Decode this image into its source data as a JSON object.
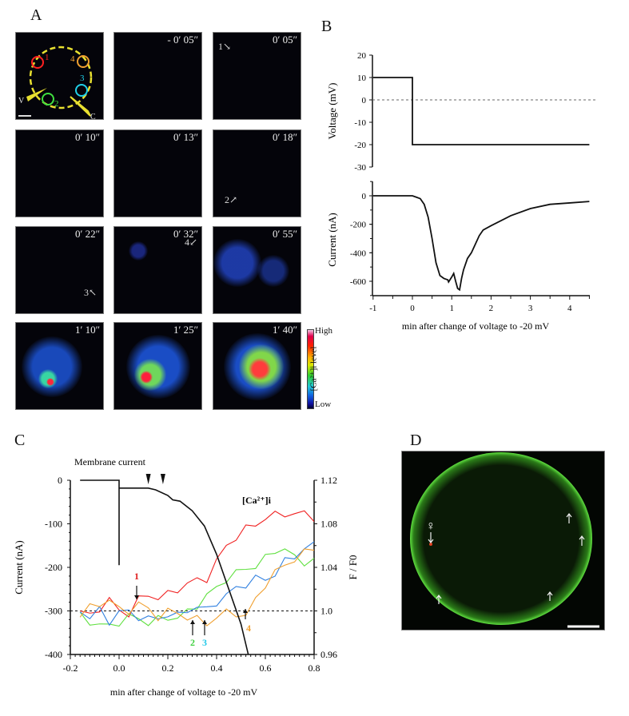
{
  "panels": {
    "a": "A",
    "b": "B",
    "c": "C",
    "d": "D"
  },
  "panel_a": {
    "schematic_labels": {
      "r1": "1",
      "r2": "2",
      "r3": "3",
      "r4": "4",
      "v": "V",
      "c": "C"
    },
    "roi_colors": [
      "#ff2020",
      "#40e040",
      "#20d0e8",
      "#f0a030"
    ],
    "timestamps": [
      "- 0′ 05″",
      "0′ 05″",
      "0′ 10″",
      "0′ 13″",
      "0′ 18″",
      "0′ 22″",
      "0′ 32″",
      "0′ 55″",
      "1′ 10″",
      "1′ 25″",
      "1′ 40″"
    ],
    "arrow_notes": {
      "n1": "1",
      "n2": "2",
      "n3": "3",
      "n4": "4"
    },
    "colorbar": {
      "high": "High",
      "low": "Low",
      "label": "[Ca²⁺]i level"
    }
  },
  "panel_d": {
    "female_symbol": "♀"
  },
  "chart_data": [
    {
      "id": "B",
      "type": "line",
      "xlabel": "min after change of voltage to -20 mV",
      "xlim": [
        -1,
        4.5
      ],
      "xticks": [
        "-1",
        "0",
        "1",
        "2",
        "3",
        "4"
      ],
      "subplots": [
        {
          "ylabel": "Voltage (mV)",
          "ylim": [
            -30,
            20
          ],
          "yticks": [
            "20",
            "10",
            "0",
            "-10",
            "-20",
            "-30"
          ],
          "reference_line": 0,
          "series": [
            {
              "name": "Voltage",
              "x": [
                -1,
                0,
                0,
                4.5
              ],
              "y": [
                10,
                10,
                -20,
                -20
              ]
            }
          ]
        },
        {
          "ylabel": "Current (nA)",
          "ylim": [
            -700,
            100
          ],
          "yticks": [
            "0",
            "-200",
            "-400",
            "-600"
          ],
          "series": [
            {
              "name": "Current",
              "x": [
                -1,
                0,
                0.1,
                0.2,
                0.3,
                0.4,
                0.5,
                0.6,
                0.7,
                0.8,
                0.9,
                0.92,
                1.0,
                1.05,
                1.1,
                1.15,
                1.2,
                1.25,
                1.3,
                1.4,
                1.5,
                1.6,
                1.7,
                1.8,
                2.0,
                2.5,
                3.0,
                3.5,
                4.0,
                4.5
              ],
              "y": [
                0,
                0,
                -10,
                -20,
                -60,
                -150,
                -300,
                -470,
                -560,
                -580,
                -590,
                -605,
                -570,
                -545,
                -600,
                -650,
                -660,
                -580,
                -520,
                -440,
                -400,
                -340,
                -280,
                -240,
                -210,
                -140,
                -90,
                -60,
                -50,
                -40
              ]
            }
          ]
        }
      ]
    },
    {
      "id": "C",
      "type": "line",
      "title": "Membrane current",
      "xlabel": "min after change of voltage to -20 mV",
      "ylabel": "Current (nA)",
      "y2label": "F / F0",
      "xlim": [
        -0.2,
        0.8
      ],
      "ylim": [
        -400,
        0
      ],
      "y2lim": [
        0.96,
        1.12
      ],
      "xticks": [
        "-0.2",
        "0.0",
        "0.2",
        "0.4",
        "0.6",
        "0.8"
      ],
      "yticks": [
        "0",
        "-100",
        "-200",
        "-300",
        "-400"
      ],
      "y2ticks": [
        "1.12",
        "1.08",
        "1.04",
        "1.0",
        "0.96"
      ],
      "reference_line_y2": 1.0,
      "annotation_ca": "[Ca²⁺]i",
      "arrowheads_x": [
        0.12,
        0.18
      ],
      "onset_markers": [
        {
          "label": "1",
          "x": 0.07,
          "color": "#e02020"
        },
        {
          "label": "2",
          "x": 0.3,
          "color": "#40d040"
        },
        {
          "label": "3",
          "x": 0.35,
          "color": "#20c8e8"
        },
        {
          "label": "4",
          "x": 0.52,
          "color": "#f0a030"
        }
      ],
      "current": {
        "x": [
          -0.16,
          0,
          0,
          0,
          0.12,
          0.15,
          0.2,
          0.22,
          0.25,
          0.3,
          0.35,
          0.4,
          0.45,
          0.5,
          0.53
        ],
        "y": [
          0,
          0,
          -195,
          -18,
          -18,
          -22,
          -35,
          -45,
          -48,
          -70,
          -105,
          -170,
          -250,
          -330,
          -400
        ]
      },
      "x": [
        -0.16,
        -0.12,
        -0.08,
        -0.04,
        0,
        0.04,
        0.08,
        0.12,
        0.16,
        0.2,
        0.24,
        0.28,
        0.32,
        0.36,
        0.4,
        0.44,
        0.48,
        0.52,
        0.56,
        0.6,
        0.64,
        0.68,
        0.72,
        0.76,
        0.8
      ],
      "series": [
        {
          "name": "1",
          "color": "#f02020",
          "values": [
            1.0,
            0.995,
            1.003,
            1.01,
            1.0,
            0.998,
            1.01,
            1.015,
            1.012,
            1.015,
            1.02,
            1.025,
            1.028,
            1.03,
            1.045,
            1.06,
            1.068,
            1.075,
            1.08,
            1.085,
            1.088,
            1.09,
            1.088,
            1.09,
            1.086
          ]
        },
        {
          "name": "2",
          "color": "#60e040",
          "values": [
            0.995,
            0.99,
            0.988,
            0.985,
            0.99,
            0.995,
            0.992,
            0.99,
            0.992,
            0.993,
            0.995,
            0.998,
            1.005,
            1.015,
            1.02,
            1.03,
            1.035,
            1.038,
            1.042,
            1.048,
            1.055,
            1.058,
            1.048,
            1.045,
            1.047
          ]
        },
        {
          "name": "3",
          "color": "#3080e0",
          "values": [
            1.0,
            0.995,
            1.0,
            0.99,
            1.0,
            0.998,
            0.995,
            0.993,
            0.992,
            0.998,
            0.995,
            1.0,
            1.005,
            1.0,
            1.008,
            1.015,
            1.02,
            1.025,
            1.03,
            1.028,
            1.035,
            1.045,
            1.05,
            1.058,
            1.06
          ]
        },
        {
          "name": "4",
          "color": "#f0a030",
          "values": [
            0.998,
            1.003,
            1.005,
            1.012,
            1.0,
            1.0,
            1.008,
            1.0,
            0.995,
            1.0,
            0.997,
            0.995,
            0.992,
            0.988,
            0.995,
            0.998,
            0.998,
            0.995,
            1.01,
            1.025,
            1.035,
            1.042,
            1.048,
            1.053,
            1.058
          ]
        }
      ]
    }
  ]
}
